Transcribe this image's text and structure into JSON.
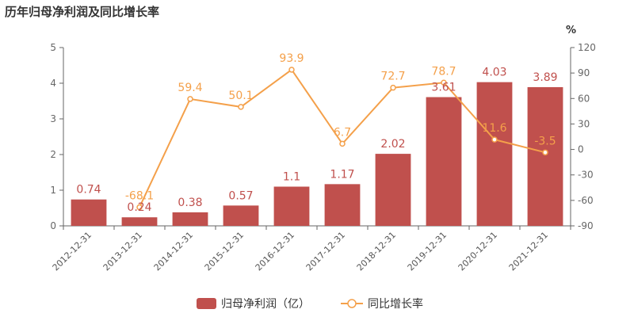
{
  "title": "历年归母净利润及同比增长率",
  "chart_data": {
    "type": "bar",
    "title": "历年归母净利润及同比增长率",
    "categories": [
      "2012-12-31",
      "2013-12-31",
      "2014-12-31",
      "2015-12-31",
      "2016-12-31",
      "2017-12-31",
      "2018-12-31",
      "2019-12-31",
      "2020-12-31",
      "2021-12-31"
    ],
    "series": [
      {
        "name": "归母净利润（亿）",
        "type": "bar",
        "axis": "left",
        "values": [
          0.74,
          0.24,
          0.38,
          0.57,
          1.1,
          1.17,
          2.02,
          3.61,
          4.03,
          3.89
        ],
        "labels": [
          "0.74",
          "0.24",
          "0.38",
          "0.57",
          "1.1",
          "1.17",
          "2.02",
          "3.61",
          "4.03",
          "3.89"
        ]
      },
      {
        "name": "同比增长率",
        "type": "line",
        "axis": "right",
        "values": [
          null,
          -68.1,
          59.4,
          50.1,
          93.9,
          6.7,
          72.7,
          78.7,
          11.6,
          -3.5
        ],
        "labels": [
          "",
          "-68.1",
          "59.4",
          "50.1",
          "93.9",
          "6.7",
          "72.7",
          "78.7",
          "11.6",
          "-3.5"
        ]
      }
    ],
    "y_left": {
      "ylim": [
        0,
        5
      ],
      "ticks": [
        0,
        1,
        2,
        3,
        4,
        5
      ]
    },
    "y_right": {
      "unit": "%",
      "ylim": [
        -90,
        120
      ],
      "ticks": [
        -90,
        -60,
        -30,
        0,
        30,
        60,
        90,
        120
      ]
    },
    "legend_position": "bottom-center",
    "grid": false,
    "colors": {
      "bar": "#c0504d",
      "line": "#f4a04a"
    }
  }
}
